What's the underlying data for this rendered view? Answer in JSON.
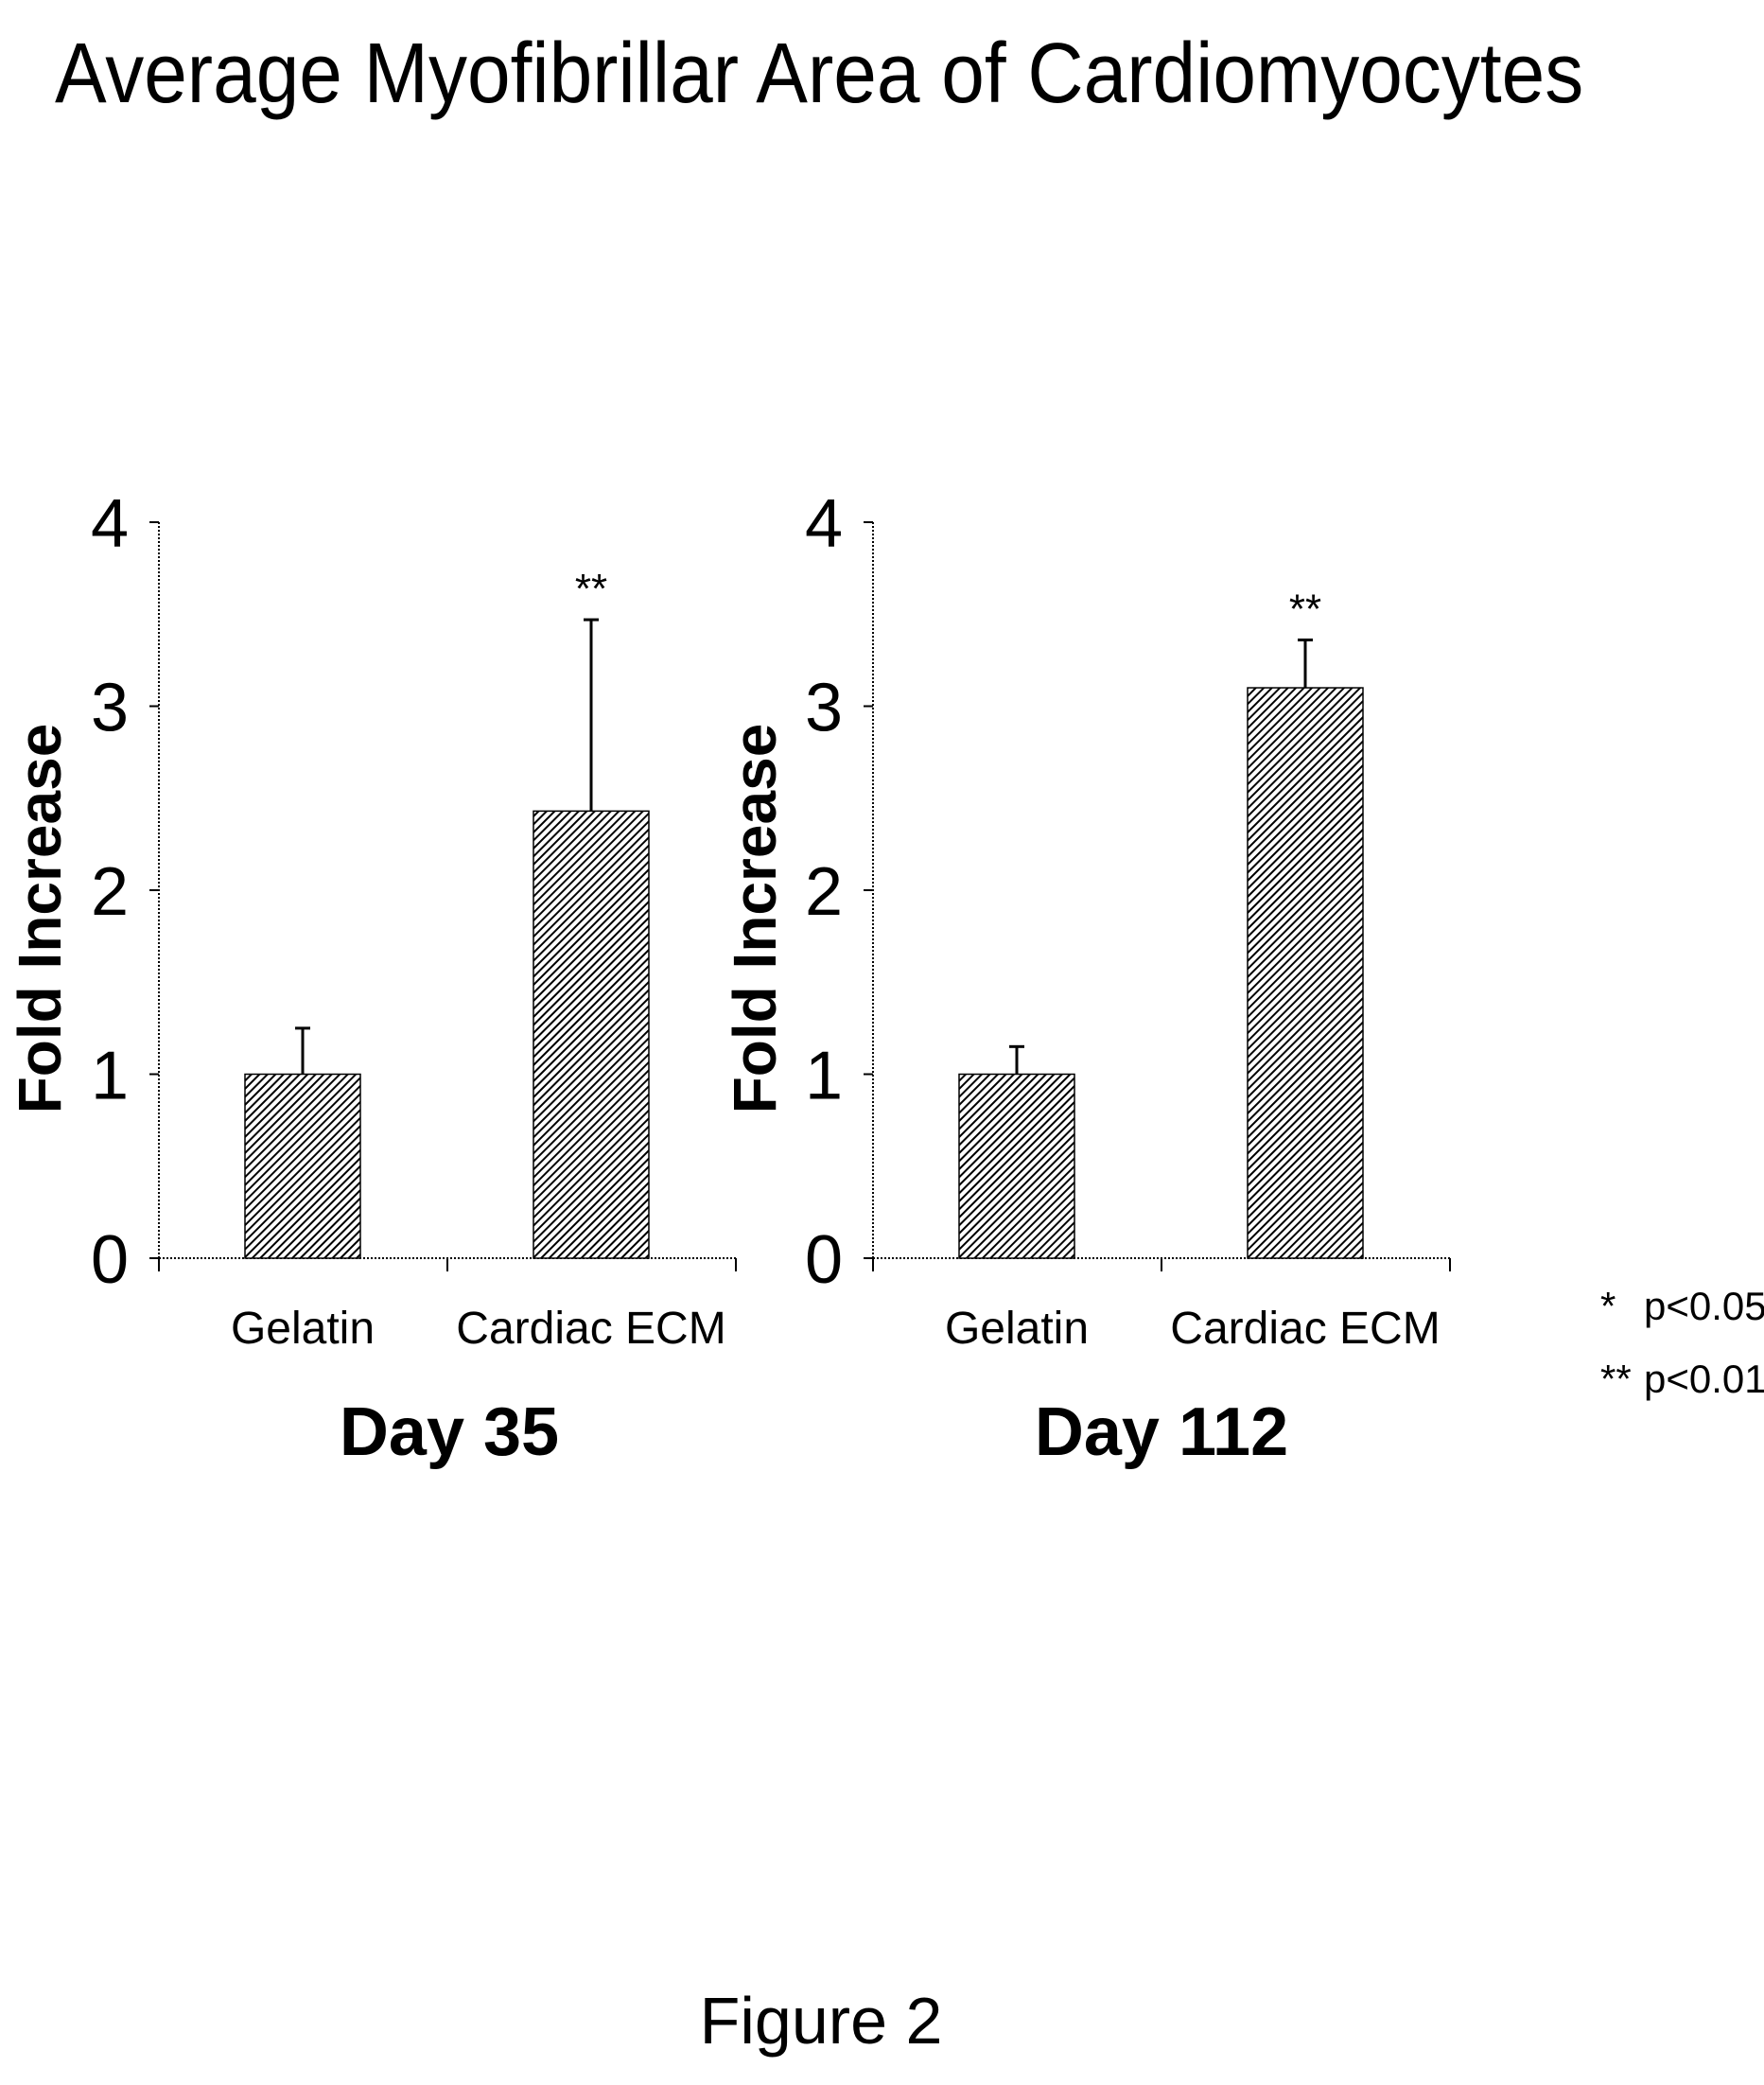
{
  "title": "Average Myofibrillar Area of Cardiomyocytes",
  "figure_label": "Figure 2",
  "significance_legend": [
    {
      "symbol": "*",
      "text": "p<0.05"
    },
    {
      "symbol": "**",
      "text": "p<0.01"
    }
  ],
  "colors": {
    "ink": "#000000",
    "background": "#ffffff"
  },
  "chart_data": [
    {
      "type": "bar",
      "title": "Day 35",
      "ylabel": "Fold Increase",
      "xlabel": "",
      "ylim": [
        0,
        4
      ],
      "yticks": [
        "0",
        "1",
        "2",
        "3",
        "4"
      ],
      "categories": [
        "Gelatin",
        "Cardiac ECM"
      ],
      "values": [
        1.0,
        2.43
      ],
      "error": [
        0.25,
        1.04
      ],
      "significance": [
        "",
        "**"
      ],
      "bar_fill": "diagonal hatch"
    },
    {
      "type": "bar",
      "title": "Day 112",
      "ylabel": "Fold Increase",
      "xlabel": "",
      "ylim": [
        0,
        4
      ],
      "yticks": [
        "0",
        "1",
        "2",
        "3",
        "4"
      ],
      "categories": [
        "Gelatin",
        "Cardiac ECM"
      ],
      "values": [
        1.0,
        3.1
      ],
      "error": [
        0.15,
        0.26
      ],
      "significance": [
        "",
        "**"
      ],
      "bar_fill": "diagonal hatch"
    }
  ]
}
